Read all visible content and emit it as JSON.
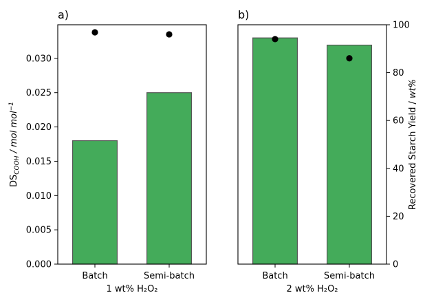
{
  "chart_data": [
    {
      "type": "bar",
      "panel_label": "a)",
      "categories": [
        "Batch",
        "Semi-batch"
      ],
      "bars": [
        0.018,
        0.025
      ],
      "points": [
        0.0338,
        0.0335
      ],
      "y_axis": "left",
      "ylim": [
        0,
        0.0349
      ],
      "yticks": [
        0.0,
        0.005,
        0.01,
        0.015,
        0.02,
        0.025,
        0.03
      ],
      "ytick_labels": [
        "0.000",
        "0.005",
        "0.010",
        "0.015",
        "0.020",
        "0.025",
        "0.030"
      ],
      "ylabel_main": "DS",
      "ylabel_sub": "COOH",
      "ylabel_rest": " / mol mol",
      "ylabel_sup": "−1",
      "xlabel": "1 wt% H₂O₂",
      "bar_color": "#44ab5a",
      "bar_edge_color": "#555555",
      "point_color": "#000000"
    },
    {
      "type": "bar",
      "panel_label": "b)",
      "categories": [
        "Batch",
        "Semi-batch"
      ],
      "bars": [
        94.5,
        91.5
      ],
      "points": [
        94.0,
        86.0
      ],
      "y_axis": "right",
      "ylim": [
        0,
        100
      ],
      "yticks": [
        0,
        20,
        40,
        60,
        80,
        100
      ],
      "ytick_labels": [
        "0",
        "20",
        "40",
        "60",
        "80",
        "100"
      ],
      "ylabel_main": "Recovered Starch Yield / ",
      "ylabel_italic": "wt%",
      "xlabel": "2 wt% H₂O₂",
      "bar_color": "#44ab5a",
      "bar_edge_color": "#555555",
      "point_color": "#000000"
    }
  ]
}
